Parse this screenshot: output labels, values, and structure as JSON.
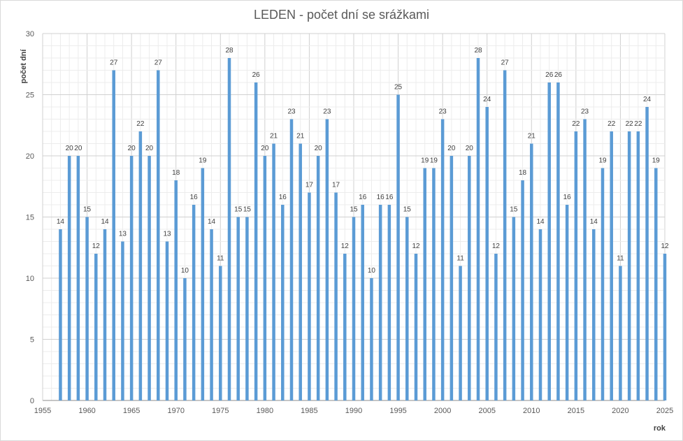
{
  "chart_data": {
    "type": "bar",
    "title": "LEDEN - počet dní se srážkami",
    "xlabel": "rok",
    "ylabel": "počet dní",
    "xlim": [
      1955,
      2025
    ],
    "ylim": [
      0,
      30
    ],
    "y_ticks": [
      0,
      5,
      10,
      15,
      20,
      25,
      30
    ],
    "x_ticks": [
      1955,
      1960,
      1965,
      1970,
      1975,
      1980,
      1985,
      1990,
      1995,
      2000,
      2005,
      2010,
      2015,
      2020,
      2025
    ],
    "grid": true,
    "legend": "none",
    "bar_color": "#5b9bd5",
    "x": [
      1957,
      1958,
      1959,
      1960,
      1961,
      1962,
      1963,
      1964,
      1965,
      1966,
      1967,
      1968,
      1969,
      1970,
      1971,
      1972,
      1973,
      1974,
      1975,
      1976,
      1977,
      1978,
      1979,
      1980,
      1981,
      1982,
      1983,
      1984,
      1985,
      1986,
      1987,
      1988,
      1989,
      1990,
      1991,
      1992,
      1993,
      1994,
      1995,
      1996,
      1997,
      1998,
      1999,
      2000,
      2001,
      2002,
      2003,
      2004,
      2005,
      2006,
      2007,
      2008,
      2009,
      2010,
      2011,
      2012,
      2013,
      2014,
      2015,
      2016,
      2017,
      2018,
      2019,
      2020,
      2021,
      2022,
      2023,
      2024,
      2025
    ],
    "values": [
      14,
      20,
      20,
      15,
      12,
      14,
      27,
      13,
      20,
      22,
      20,
      27,
      13,
      18,
      10,
      16,
      19,
      14,
      11,
      28,
      15,
      15,
      26,
      20,
      21,
      16,
      23,
      21,
      17,
      20,
      23,
      17,
      12,
      15,
      16,
      10,
      16,
      16,
      25,
      15,
      12,
      19,
      19,
      23,
      20,
      11,
      20,
      28,
      24,
      12,
      27,
      15,
      18,
      21,
      14,
      26,
      26,
      16,
      22,
      23,
      14,
      19,
      22,
      11,
      22,
      22,
      24,
      19,
      12
    ]
  }
}
